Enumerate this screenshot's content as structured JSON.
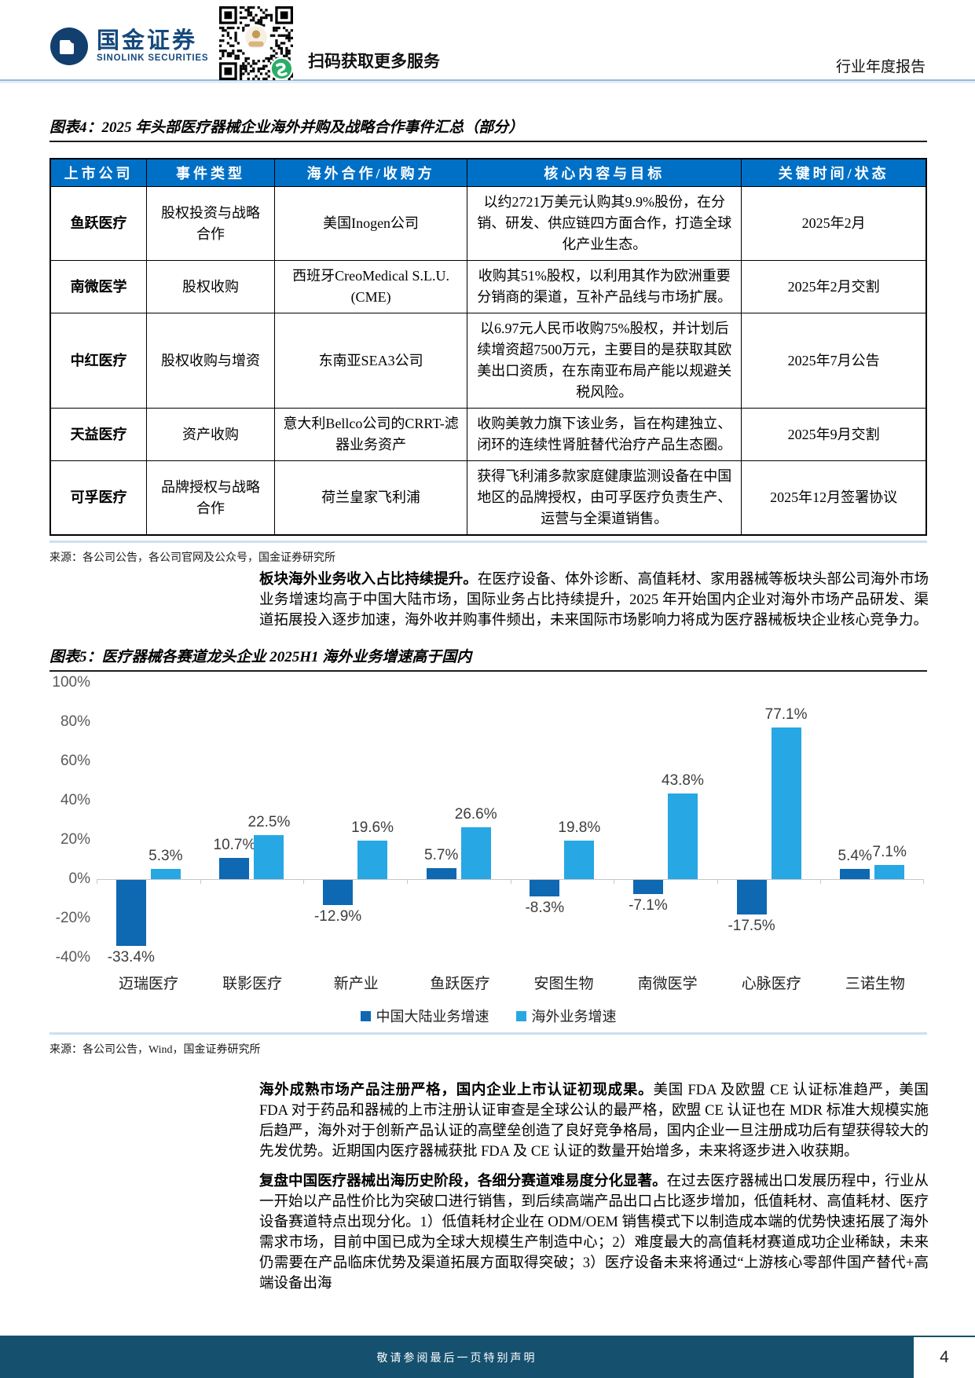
{
  "header": {
    "brand_cn": "国金证券",
    "brand_en": "SINOLINK SECURITIES",
    "qr_caption": "扫码获取更多服务",
    "report_type": "行业年度报告"
  },
  "figure4": {
    "title": "图表4：2025 年头部医疗器械企业海外并购及战略合作事件汇总（部分）",
    "table": {
      "headers": [
        "上市公司",
        "事件类型",
        "海外合作/收购方",
        "核心内容与目标",
        "关键时间/状态"
      ],
      "rows": [
        [
          "鱼跃医疗",
          "股权投资与战略合作",
          "美国Inogen公司",
          "以约2721万美元认购其9.9%股份，在分销、研发、供应链四方面合作，打造全球化产业生态。",
          "2025年2月"
        ],
        [
          "南微医学",
          "股权收购",
          "西班牙CreoMedical S.L.U. (CME)",
          "收购其51%股权，以利用其作为欧洲重要分销商的渠道，互补产品线与市场扩展。",
          "2025年2月交割"
        ],
        [
          "中红医疗",
          "股权收购与增资",
          "东南亚SEA3公司",
          "以6.97元人民币收购75%股权，并计划后续增资超7500万元，主要目的是获取其欧美出口资质，在东南亚布局产能以规避关税风险。",
          "2025年7月公告"
        ],
        [
          "天益医疗",
          "资产收购",
          "意大利Bellco公司的CRRT-滤器业务资产",
          "收购美敦力旗下该业务，旨在构建独立、闭环的连续性肾脏替代治疗产品生态圈。",
          "2025年9月交割"
        ],
        [
          "可孚医疗",
          "品牌授权与战略合作",
          "荷兰皇家飞利浦",
          "获得飞利浦多款家庭健康监测设备在中国地区的品牌授权，由可孚医疗负责生产、运营与全渠道销售。",
          "2025年12月签署协议"
        ]
      ]
    },
    "source": "来源：各公司公告，各公司官网及公众号，国金证券研究所"
  },
  "para1": {
    "lead": "板块海外业务收入占比持续提升。",
    "body": "在医疗设备、体外诊断、高值耗材、家用器械等板块头部公司海外市场业务增速均高于中国大陆市场，国际业务占比持续提升，2025 年开始国内企业对海外市场产品研发、渠道拓展投入逐步加速，海外收并购事件频出，未来国际市场影响力将成为医疗器械板块企业核心竞争力。"
  },
  "figure5": {
    "title": "图表5：医疗器械各赛道龙头企业 2025H1 海外业务增速高于国内",
    "source": "来源：各公司公告，Wind，国金证券研究所"
  },
  "chart_data": {
    "type": "bar",
    "title": "医疗器械各赛道龙头企业 2025H1 海外业务增速高于国内",
    "categories": [
      "迈瑞医疗",
      "联影医疗",
      "新产业",
      "鱼跃医疗",
      "安图生物",
      "南微医学",
      "心脉医疗",
      "三诺生物"
    ],
    "series": [
      {
        "name": "中国大陆业务增速",
        "color": "#0e68b2",
        "values": [
          -33.4,
          10.7,
          -12.9,
          5.7,
          -8.3,
          -7.1,
          -17.5,
          5.4
        ]
      },
      {
        "name": "海外业务增速",
        "color": "#27a7e3",
        "values": [
          5.3,
          22.5,
          19.6,
          26.6,
          19.8,
          43.8,
          77.1,
          7.1
        ]
      }
    ],
    "ylim": [
      -40,
      100
    ],
    "yticks": [
      100,
      80,
      60,
      40,
      20,
      0,
      -20,
      -40
    ],
    "ytick_format": "percent",
    "value_label_format": "one_decimal_percent",
    "grid": false,
    "legend_position": "bottom"
  },
  "para2": {
    "lead": "海外成熟市场产品注册严格，国内企业上市认证初现成果。",
    "body": "美国 FDA 及欧盟 CE 认证标准趋严，美国 FDA 对于药品和器械的上市注册认证审查是全球公认的最严格，欧盟 CE 认证也在 MDR 标准大规模实施后趋严，海外对于创新产品认证的高壁垒创造了良好竞争格局，国内企业一旦注册成功后有望获得较大的先发优势。近期国内医疗器械获批 FDA 及 CE 认证的数量开始增多，未来将逐步进入收获期。"
  },
  "para3": {
    "lead": "复盘中国医疗器械出海历史阶段，各细分赛道难易度分化显著。",
    "body": "在过去医疗器械出口发展历程中，行业从一开始以产品性价比为突破口进行销售，到后续高端产品出口占比逐步增加，低值耗材、高值耗材、医疗设备赛道特点出现分化。1）低值耗材企业在 ODM/OEM 销售模式下以制造成本端的优势快速拓展了海外需求市场，目前中国已成为全球大规模生产制造中心；2）难度最大的高值耗材赛道成功企业稀缺，未来仍需要在产品临床优势及渠道拓展方面取得突破；3）医疗设备未来将通过“上游核心零部件国产替代+高端设备出海"
  },
  "footer": {
    "disclaimer": "敬请参阅最后一页特别声明",
    "page_number": "4"
  }
}
